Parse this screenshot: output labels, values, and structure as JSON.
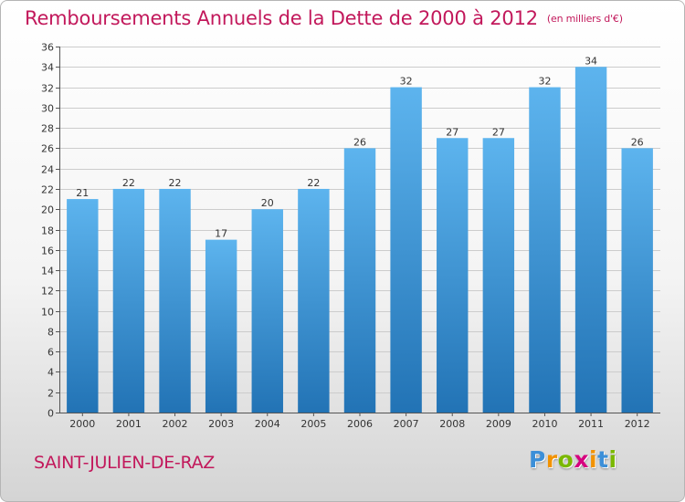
{
  "title": "Remboursements Annuels de la Dette de 2000 à 2012",
  "unit": "(en milliers d'€)",
  "commune": "SAINT-JULIEN-DE-RAZ",
  "logo": {
    "letters": [
      {
        "char": "P",
        "color": "#3c8fd8"
      },
      {
        "char": "r",
        "color": "#f29200"
      },
      {
        "char": "o",
        "color": "#7ab800"
      },
      {
        "char": "x",
        "color": "#d6007f"
      },
      {
        "char": "i",
        "color": "#f29200"
      },
      {
        "char": "t",
        "color": "#3c8fd8"
      },
      {
        "char": "i",
        "color": "#7ab800"
      }
    ]
  },
  "colors": {
    "title": "#c2185b",
    "bar_light": "#5db4ee",
    "bar_dark": "#2273b5",
    "grid": "#cccccc",
    "axis": "#555555"
  },
  "chart_data": {
    "type": "bar",
    "categories": [
      "2000",
      "2001",
      "2002",
      "2003",
      "2004",
      "2005",
      "2006",
      "2007",
      "2008",
      "2009",
      "2010",
      "2011",
      "2012"
    ],
    "values": [
      21,
      22,
      22,
      17,
      20,
      22,
      26,
      32,
      27,
      27,
      32,
      34,
      26
    ],
    "ylim": [
      0,
      36
    ],
    "ytick_step": 2,
    "grid": true,
    "data_labels": true
  }
}
